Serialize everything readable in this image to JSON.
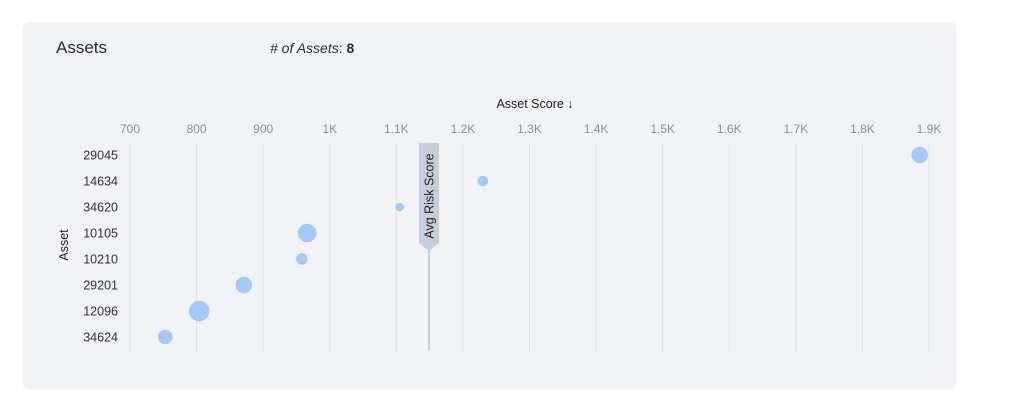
{
  "header": {
    "title": "Assets",
    "count_label": "# of Assets",
    "count_value": "8"
  },
  "chart_data": {
    "type": "scatter",
    "xlabel": "Asset Score ↓",
    "ylabel": "Asset",
    "xlim": [
      700,
      1900
    ],
    "x_ticks": [
      700,
      800,
      900,
      1000,
      1100,
      1200,
      1300,
      1400,
      1500,
      1600,
      1700,
      1800,
      1900
    ],
    "x_tick_labels": [
      "700",
      "800",
      "900",
      "1K",
      "1.1K",
      "1.2K",
      "1.3K",
      "1.4K",
      "1.5K",
      "1.6K",
      "1.7K",
      "1.8K",
      "1.9K"
    ],
    "categories": [
      "29045",
      "14634",
      "34620",
      "10105",
      "10210",
      "29201",
      "12096",
      "34624"
    ],
    "values": [
      1886,
      1230,
      1105,
      966,
      958,
      871,
      804,
      753
    ],
    "sizes": [
      8,
      5,
      4,
      9,
      5.5,
      8,
      10,
      7
    ],
    "reference_line": {
      "label": "Avg Risk Score",
      "value": 1149
    },
    "grid": true,
    "point_color": "#a4c8f7",
    "reference_color": "#c5cfdb"
  }
}
